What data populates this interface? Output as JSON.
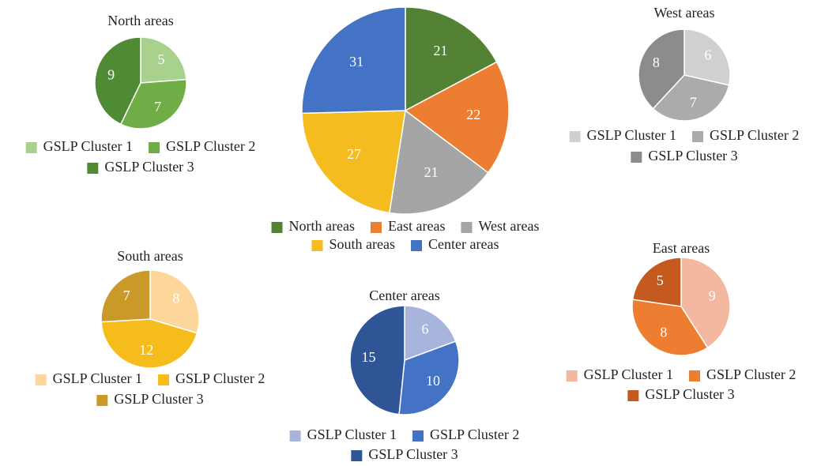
{
  "chart_data": [
    {
      "type": "pie",
      "categories": [
        "North areas",
        "East areas",
        "West areas",
        "South areas",
        "Center areas"
      ],
      "values": [
        21,
        22,
        21,
        27,
        31
      ],
      "colors": [
        "#548235",
        "#ed7d31",
        "#a5a5a5",
        "#f5bc1f",
        "#4472c4"
      ]
    },
    {
      "type": "pie",
      "title": "North areas",
      "categories": [
        "GSLP Cluster 1",
        "GSLP Cluster 2",
        "GSLP Cluster 3"
      ],
      "values": [
        5,
        7,
        9
      ],
      "colors": [
        "#a9d18e",
        "#70ad47",
        "#4f8a35"
      ]
    },
    {
      "type": "pie",
      "title": "West areas",
      "categories": [
        "GSLP Cluster 1",
        "GSLP Cluster 2",
        "GSLP Cluster 3"
      ],
      "values": [
        6,
        7,
        8
      ],
      "colors": [
        "#d0d0d0",
        "#ababab",
        "#8c8c8c"
      ]
    },
    {
      "type": "pie",
      "title": "South areas",
      "categories": [
        "GSLP Cluster 1",
        "GSLP Cluster 2",
        "GSLP Cluster 3"
      ],
      "values": [
        8,
        12,
        7
      ],
      "colors": [
        "#fdd69b",
        "#f6bc1c",
        "#c99a29"
      ]
    },
    {
      "type": "pie",
      "title": "Center areas",
      "categories": [
        "GSLP Cluster 1",
        "GSLP Cluster 2",
        "GSLP Cluster 3"
      ],
      "values": [
        6,
        10,
        15
      ],
      "colors": [
        "#a8b4dc",
        "#4472c4",
        "#2f5597"
      ]
    },
    {
      "type": "pie",
      "title": "East areas",
      "categories": [
        "GSLP Cluster 1",
        "GSLP Cluster 2",
        "GSLP Cluster 3"
      ],
      "values": [
        9,
        8,
        5
      ],
      "colors": [
        "#f4b8a0",
        "#ed7d31",
        "#c55a1e"
      ]
    }
  ]
}
